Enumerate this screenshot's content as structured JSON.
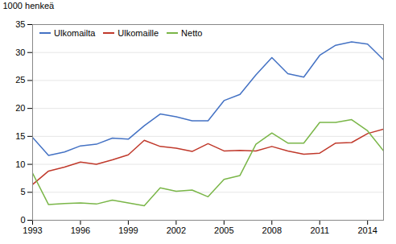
{
  "chart_data": {
    "type": "line",
    "ylabel": "1000 henkeä",
    "x": [
      1993,
      1994,
      1995,
      1996,
      1997,
      1998,
      1999,
      2000,
      2001,
      2002,
      2003,
      2004,
      2005,
      2006,
      2007,
      2008,
      2009,
      2010,
      2011,
      2012,
      2013,
      2014,
      2015
    ],
    "series": [
      {
        "name": "Ulkomailta",
        "color": "#4472C4",
        "values": [
          14.8,
          11.6,
          12.2,
          13.3,
          13.6,
          14.7,
          14.5,
          16.9,
          19.0,
          18.5,
          17.8,
          17.8,
          21.4,
          22.5,
          26.0,
          29.1,
          26.2,
          25.6,
          29.5,
          31.3,
          31.9,
          31.5,
          28.7
        ]
      },
      {
        "name": "Ulkomaille",
        "color": "#C0392B",
        "values": [
          6.4,
          8.8,
          9.5,
          10.4,
          10.0,
          10.8,
          11.7,
          14.3,
          13.2,
          12.9,
          12.3,
          13.7,
          12.4,
          12.5,
          12.4,
          13.2,
          12.4,
          11.8,
          12.0,
          13.8,
          13.9,
          15.5,
          16.3
        ]
      },
      {
        "name": "Netto",
        "color": "#7AB648",
        "values": [
          8.4,
          2.8,
          3.0,
          3.1,
          2.9,
          3.6,
          3.1,
          2.6,
          5.8,
          5.2,
          5.4,
          4.2,
          7.3,
          8.0,
          13.6,
          15.6,
          13.8,
          13.8,
          17.5,
          17.5,
          18.0,
          16.0,
          12.4
        ]
      }
    ],
    "xlim": [
      1993,
      2015
    ],
    "xticks": [
      1993,
      1996,
      1999,
      2002,
      2005,
      2008,
      2011,
      2014
    ],
    "ylim": [
      0,
      35
    ],
    "yticks": [
      0,
      5,
      10,
      15,
      20,
      25,
      30,
      35
    ],
    "grid": true,
    "legend": "upper left"
  }
}
